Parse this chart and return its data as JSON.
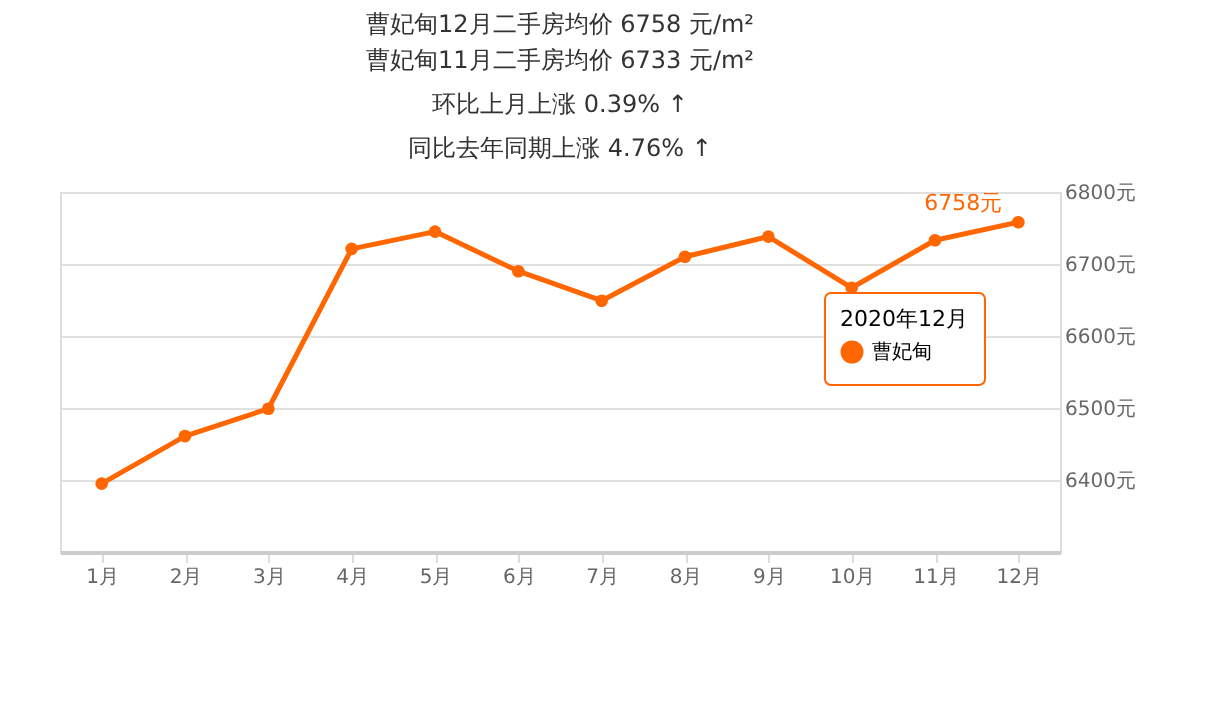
{
  "chart_data": {
    "type": "line",
    "title": "曹妃甸12月二手房均价 6758 元/m²",
    "subtitle": [
      "曹妃甸11月二手房均价 6733 元/m²",
      "环比上月上涨 0.39% ↑",
      "同比去年同期上涨 4.76% ↑"
    ],
    "categories": [
      "1月",
      "2月",
      "3月",
      "4月",
      "5月",
      "6月",
      "7月",
      "8月",
      "9月",
      "10月",
      "11月",
      "12月"
    ],
    "series": [
      {
        "name": "曹妃甸",
        "color": "#ff6600",
        "values": [
          6395,
          6461,
          6499,
          6721,
          6745,
          6690,
          6649,
          6710,
          6738,
          6667,
          6733,
          6758
        ],
        "value_labels": [
          null,
          null,
          null,
          null,
          null,
          null,
          null,
          null,
          null,
          null,
          null,
          "6758元"
        ]
      }
    ],
    "legend_title": "2020年12月",
    "ylim": [
      6300,
      6800
    ],
    "yticks": [
      {
        "value": 6300,
        "label": null
      },
      {
        "value": 6400,
        "label": "6400元"
      },
      {
        "value": 6500,
        "label": "6500元"
      },
      {
        "value": 6600,
        "label": "6600元"
      },
      {
        "value": 6700,
        "label": "6700元"
      },
      {
        "value": 6800,
        "label": "6800元"
      }
    ],
    "grid": "y",
    "marker": "circle",
    "line_style": "solid",
    "legend": "right"
  }
}
